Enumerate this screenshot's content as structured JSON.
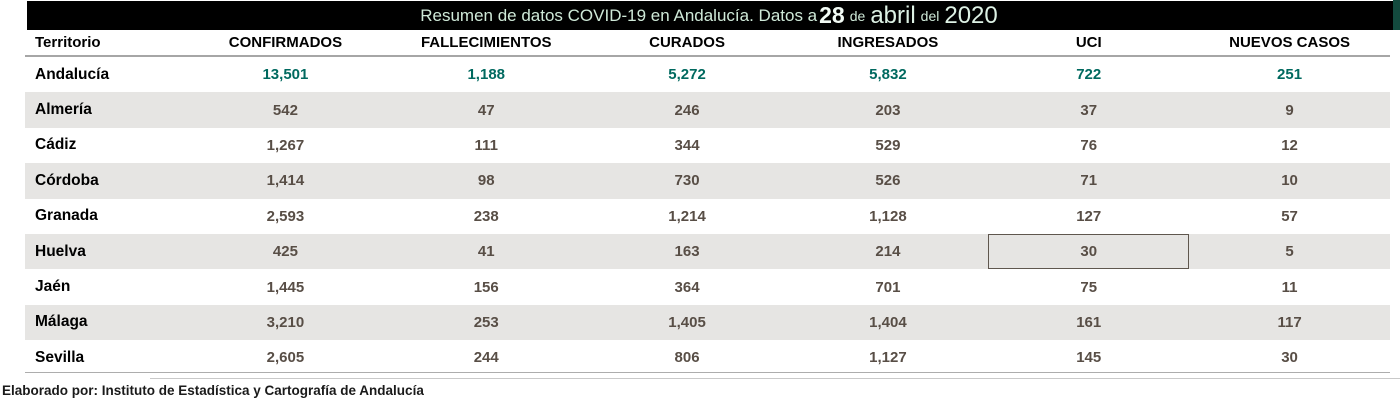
{
  "title": {
    "prefix": "Resumen de datos COVID-19 en Andalucía. Datos a ",
    "day": "28",
    "sep1": "de",
    "month": "abril",
    "sep2": "del",
    "year": "2020"
  },
  "table": {
    "columns": [
      "Territorio",
      "CONFIRMADOS",
      "FALLECIMIENTOS",
      "CURADOS",
      "INGRESADOS",
      "UCI",
      "NUEVOS CASOS"
    ],
    "rows": [
      {
        "territory": "Andalucía",
        "values": [
          "13,501",
          "1,188",
          "5,272",
          "5,832",
          "722",
          "251"
        ]
      },
      {
        "territory": "Almería",
        "values": [
          "542",
          "47",
          "246",
          "203",
          "37",
          "9"
        ]
      },
      {
        "territory": "Cádiz",
        "values": [
          "1,267",
          "111",
          "344",
          "529",
          "76",
          "12"
        ]
      },
      {
        "territory": "Córdoba",
        "values": [
          "1,414",
          "98",
          "730",
          "526",
          "71",
          "10"
        ]
      },
      {
        "territory": "Granada",
        "values": [
          "2,593",
          "238",
          "1,214",
          "1,128",
          "127",
          "57"
        ]
      },
      {
        "territory": "Huelva",
        "values": [
          "425",
          "41",
          "163",
          "214",
          "30",
          "5"
        ]
      },
      {
        "territory": "Jaén",
        "values": [
          "1,445",
          "156",
          "364",
          "701",
          "75",
          "11"
        ]
      },
      {
        "territory": "Málaga",
        "values": [
          "3,210",
          "253",
          "1,405",
          "1,404",
          "161",
          "117"
        ]
      },
      {
        "territory": "Sevilla",
        "values": [
          "2,605",
          "244",
          "806",
          "1,127",
          "145",
          "30"
        ]
      }
    ]
  },
  "selection": {
    "row_index": 5,
    "column_index": 4
  },
  "footer": {
    "text": "Elaborado por: Instituto de Estadística y Cartografía de Andalucía"
  },
  "colors": {
    "banner_background": "#000000",
    "banner_text_green": "#cfe9d8",
    "total_value_teal": "#00695f",
    "value_text_brown": "#584e46",
    "shaded_row_gray": "#e6e5e3",
    "selection_border": "#5f574e",
    "edge_accent_teal": "#134a3e"
  }
}
